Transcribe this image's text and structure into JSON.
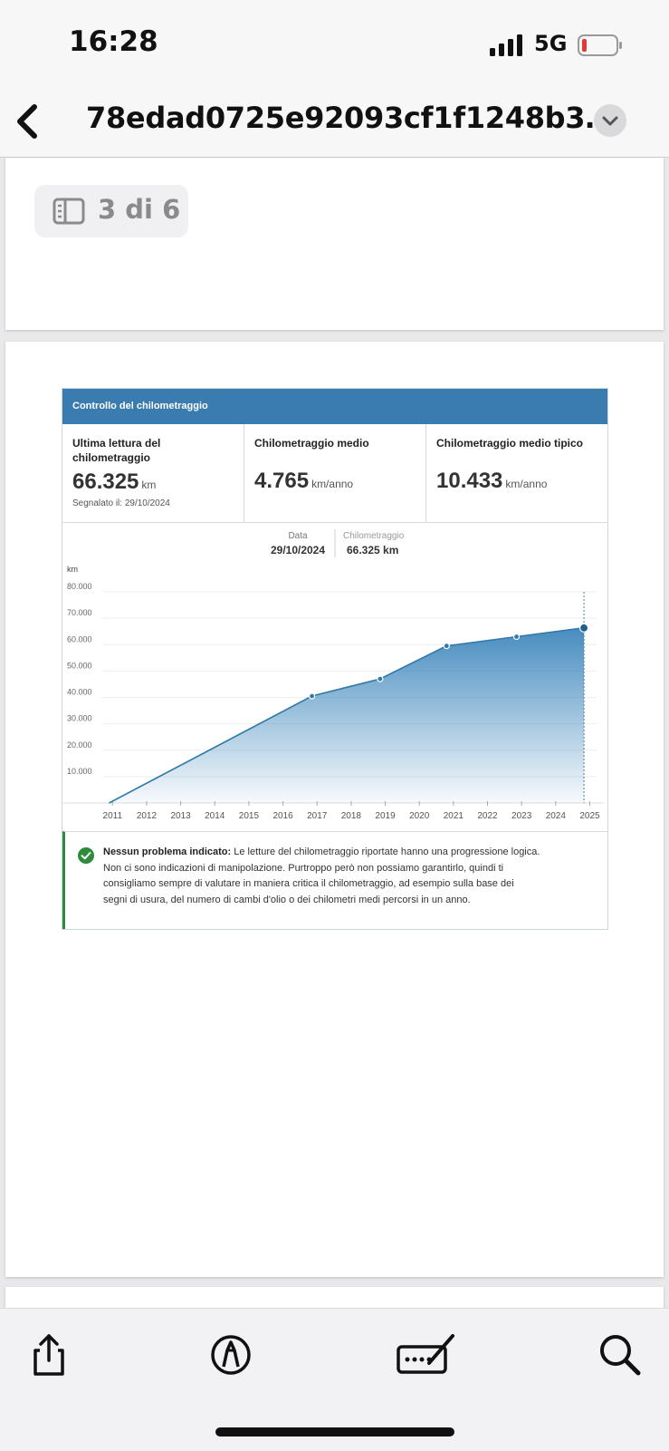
{
  "status_bar": {
    "time": "16:28",
    "network": "5G",
    "battery_color": "#e53935"
  },
  "nav": {
    "title": "78edad0725e92093cf1f1248b3…",
    "back_icon": "chevron-left-icon",
    "menu_icon": "chevron-down-icon"
  },
  "page_indicator": {
    "label": "3 di 6",
    "icon": "sidebar-icon"
  },
  "report": {
    "header": "Controllo del chilometraggio",
    "stats": [
      {
        "label_line1": "Ultima lettura del",
        "label_line2": "chilometraggio",
        "value": "66.325",
        "unit": "km",
        "note": "Segnalato il: 29/10/2024"
      },
      {
        "label_line1": "Chilometraggio medio",
        "value": "4.765",
        "unit": "km/anno"
      },
      {
        "label_line1": "Chilometraggio medio tipico",
        "value": "10.433",
        "unit": "km/anno"
      }
    ],
    "tooltip": {
      "date_label": "Data",
      "date_value": "29/10/2024",
      "km_label": "Chilometraggio",
      "km_value": "66.325 km"
    },
    "info": {
      "bold": "Nessun problema indicato:",
      "line1": "Le letture del chilometraggio riportate hanno una progressione logica.",
      "line2": "Non ci sono indicazioni di manipolazione. Purtroppo però non possiamo garantirlo, quindi ti",
      "line3": "consigliamo sempre di valutare in maniera critica il chilometraggio, ad esempio sulla base dei",
      "line4": "segni di usura, del numero di cambi d'olio o dei chilometri medi percorsi in un anno.",
      "icon": "check-circle-icon",
      "accent_color": "#2e8b3e"
    }
  },
  "chart_data": {
    "type": "area",
    "ylabel": "km",
    "ylim": [
      0,
      80000
    ],
    "yticks": [
      10000,
      20000,
      30000,
      40000,
      50000,
      60000,
      70000,
      80000
    ],
    "ytick_labels": [
      "10.000",
      "20.000",
      "30.000",
      "40.000",
      "50.000",
      "60.000",
      "70.000",
      "80.000"
    ],
    "xlim": [
      2010.7,
      2025.2
    ],
    "xticks": [
      2011,
      2012,
      2013,
      2014,
      2015,
      2016,
      2017,
      2018,
      2019,
      2020,
      2021,
      2022,
      2023,
      2024,
      2025
    ],
    "x": [
      2010.9,
      2016.85,
      2018.85,
      2020.8,
      2022.85,
      2024.83
    ],
    "y": [
      0,
      40500,
      47000,
      59500,
      63000,
      66325
    ],
    "highlight_index": 5,
    "line_color": "#2f7aa8",
    "fill_color": "#4a90c2",
    "grid": true
  },
  "toolbar": {
    "icons": [
      "share-icon",
      "markup-icon",
      "signature-icon",
      "search-icon"
    ]
  }
}
